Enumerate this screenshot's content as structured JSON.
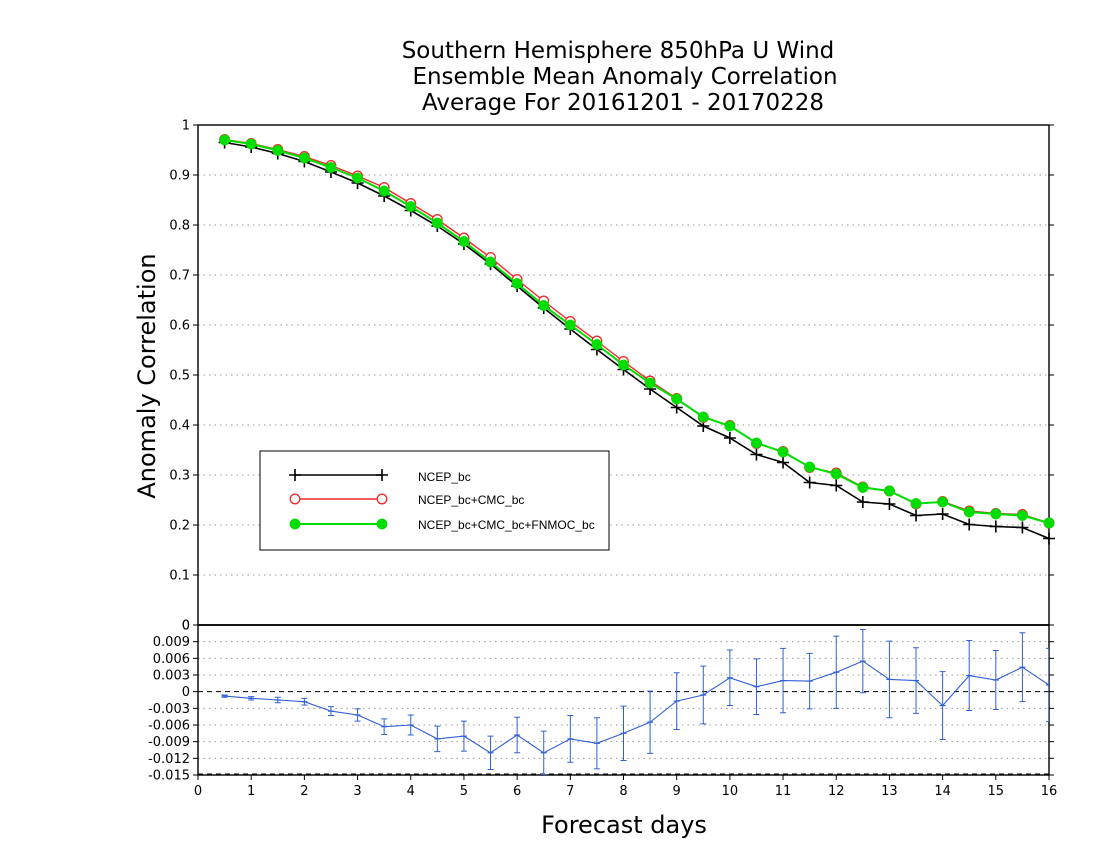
{
  "title": {
    "lines": [
      "Southern Hemisphere 850hPa U Wind",
      "Ensemble Mean Anomaly Correlation",
      "Average For 20161201 - 20170228"
    ]
  },
  "axes": {
    "xlabel": "Forecast days",
    "ylabel": "Anomaly Correlation",
    "x_ticks": [
      "0",
      "1",
      "2",
      "3",
      "4",
      "5",
      "6",
      "7",
      "8",
      "9",
      "10",
      "11",
      "12",
      "13",
      "14",
      "15",
      "16"
    ],
    "top_y_ticks": [
      "0",
      "0.1",
      "0.2",
      "0.3",
      "0.4",
      "0.5",
      "0.6",
      "0.7",
      "0.8",
      "0.9",
      "1"
    ],
    "bottom_y_ticks": [
      "-0.015",
      "-0.012",
      "-0.009",
      "-0.006",
      "-0.003",
      "0",
      "0.003",
      "0.006",
      "0.009",
      "0"
    ]
  },
  "legend": {
    "placement": "center-left",
    "entries": [
      "NCEP_bc",
      "NCEP_bc+CMC_bc",
      "NCEP_bc+CMC_bc+FNMOC_bc"
    ]
  },
  "colors": {
    "ncep_bc": "#000000",
    "ncep_cmc": "#ee2a2a",
    "ncep_cmc_fnmoc": "#00dd00",
    "difference": "#3060d8"
  },
  "chart_data": [
    {
      "type": "line",
      "xlim": [
        0,
        16
      ],
      "ylim": [
        0,
        1
      ],
      "grid": true,
      "x": [
        0.5,
        1,
        1.5,
        2,
        2.5,
        3,
        3.5,
        4,
        4.5,
        5,
        5.5,
        6,
        6.5,
        7,
        7.5,
        8,
        8.5,
        9,
        9.5,
        10,
        10.5,
        11,
        11.5,
        12,
        12.5,
        13,
        13.5,
        14,
        14.5,
        15,
        15.5,
        16
      ],
      "series": [
        {
          "name": "NCEP_bc",
          "marker": "plus",
          "values": [
            0.965,
            0.956,
            0.943,
            0.927,
            0.906,
            0.884,
            0.858,
            0.829,
            0.798,
            0.762,
            0.722,
            0.678,
            0.634,
            0.592,
            0.551,
            0.511,
            0.472,
            0.435,
            0.398,
            0.374,
            0.341,
            0.325,
            0.285,
            0.279,
            0.246,
            0.242,
            0.219,
            0.222,
            0.201,
            0.197,
            0.195,
            0.173
          ]
        },
        {
          "name": "NCEP_bc+CMC_bc",
          "marker": "open-circle",
          "values": [
            0.971,
            0.963,
            0.951,
            0.937,
            0.919,
            0.898,
            0.875,
            0.843,
            0.811,
            0.774,
            0.735,
            0.691,
            0.648,
            0.607,
            0.568,
            0.527,
            0.488,
            0.453,
            0.415,
            0.399,
            0.363,
            0.347,
            0.315,
            0.304,
            0.276,
            0.268,
            0.242,
            0.247,
            0.228,
            0.223,
            0.221,
            0.204
          ]
        },
        {
          "name": "NCEP_bc+CMC_bc+FNMOC_bc",
          "marker": "filled-circle",
          "values": [
            0.97,
            0.962,
            0.949,
            0.934,
            0.915,
            0.894,
            0.868,
            0.837,
            0.804,
            0.767,
            0.726,
            0.683,
            0.639,
            0.6,
            0.561,
            0.52,
            0.484,
            0.452,
            0.416,
            0.398,
            0.364,
            0.346,
            0.316,
            0.302,
            0.275,
            0.268,
            0.243,
            0.246,
            0.226,
            0.222,
            0.219,
            0.204
          ]
        }
      ]
    },
    {
      "type": "line",
      "xlim": [
        0,
        16
      ],
      "ylim": [
        -0.015,
        0.012
      ],
      "grid": true,
      "x": [
        0.5,
        1,
        1.5,
        2,
        2.5,
        3,
        3.5,
        4,
        4.5,
        5,
        5.5,
        6,
        6.5,
        7,
        7.5,
        8,
        8.5,
        9,
        9.5,
        10,
        10.5,
        11,
        11.5,
        12,
        12.5,
        13,
        13.5,
        14,
        14.5,
        15,
        15.5,
        16
      ],
      "series": [
        {
          "name": "",
          "error_bars": true,
          "values": [
            -0.0008,
            -0.0012,
            -0.0015,
            -0.0018,
            -0.0035,
            -0.0042,
            -0.0063,
            -0.006,
            -0.0085,
            -0.008,
            -0.011,
            -0.0078,
            -0.011,
            -0.0085,
            -0.0093,
            -0.0075,
            -0.0055,
            -0.0017,
            -0.0006,
            0.0025,
            0.0009,
            0.002,
            0.0019,
            0.0035,
            0.0055,
            0.0022,
            0.002,
            -0.0025,
            0.0029,
            0.0021,
            0.0044,
            0.0012
          ],
          "errors": [
            0.0002,
            0.0003,
            0.0005,
            0.0006,
            0.0008,
            0.0011,
            0.0014,
            0.0018,
            0.0023,
            0.0027,
            0.003,
            0.0032,
            0.0039,
            0.0042,
            0.0046,
            0.0049,
            0.0056,
            0.0051,
            0.0052,
            0.005,
            0.005,
            0.0058,
            0.005,
            0.0065,
            0.0057,
            0.0069,
            0.0059,
            0.0061,
            0.0063,
            0.0053,
            0.0062,
            0.0066
          ]
        }
      ]
    }
  ]
}
